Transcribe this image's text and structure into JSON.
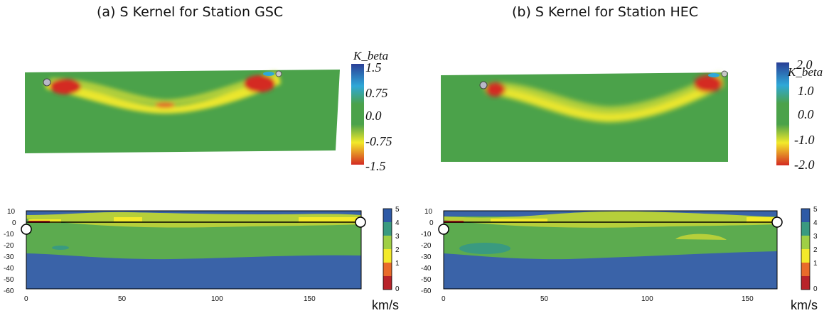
{
  "titles": {
    "a": "(a) S Kernel for Station GSC",
    "b": "(b) S Kernel for Station HEC"
  },
  "kernel_colorbars": {
    "a": {
      "label": "K_beta",
      "ticks": [
        "1.5",
        "0.75",
        "0.0",
        "-0.75",
        "-1.5"
      ]
    },
    "b": {
      "label": "K_beta",
      "ticks": [
        "2.0",
        "1.0",
        "0.0",
        "-1.0",
        "-2.0"
      ]
    }
  },
  "velocity_colorbar": {
    "ticks": [
      "5",
      "4",
      "3",
      "2",
      "1",
      "0"
    ],
    "unit": "km/s"
  },
  "depth_axis_ticks": [
    "10",
    "0",
    "-10",
    "-20",
    "-30",
    "-40",
    "-50",
    "-60"
  ],
  "distance_axis": {
    "a": [
      "0",
      "50",
      "100",
      "150"
    ],
    "b": [
      "0",
      "50",
      "100",
      "150"
    ]
  },
  "colors": {
    "green": "#4ba24a",
    "yellow": "#f3ea2a",
    "red": "#d42a22",
    "blue_dark": "#2b4f9a",
    "blue_light": "#2fa8d8",
    "layer_blue": "#3a63a8",
    "layer_green": "#5cab4f",
    "layer_ygreen": "#b6cf3a"
  }
}
